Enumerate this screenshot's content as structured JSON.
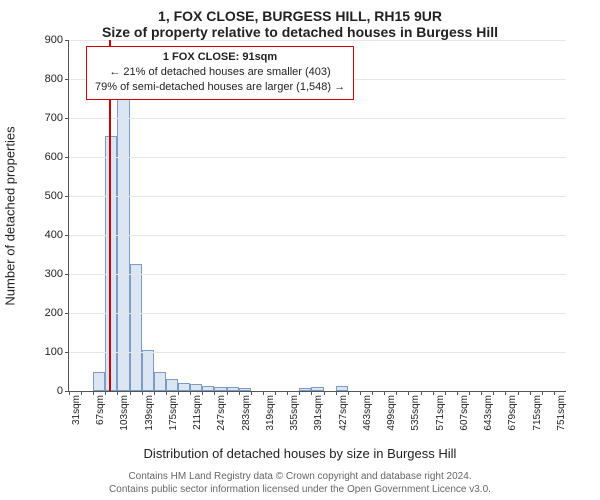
{
  "title": "1, FOX CLOSE, BURGESS HILL, RH15 9UR",
  "subtitle": "Size of property relative to detached houses in Burgess Hill",
  "ylabel": "Number of detached properties",
  "xlabel": "Distribution of detached houses by size in Burgess Hill",
  "chart": {
    "type": "histogram",
    "ylim": [
      0,
      900
    ],
    "ytick_step": 100,
    "x_start": 31,
    "x_bin_width": 18,
    "n_bins": 41,
    "xtick_step_bins": 2,
    "xtick_suffix": "sqm",
    "bar_fill": "#dce6f2",
    "bar_border": "#7a9cc6",
    "grid_color": "#e6e6e6",
    "axis_color": "#555555",
    "background": "#ffffff",
    "marker_value": 91,
    "marker_color": "#d00000",
    "bin_counts": [
      0,
      0,
      50,
      655,
      780,
      325,
      105,
      50,
      30,
      20,
      18,
      12,
      10,
      10,
      8,
      0,
      0,
      0,
      0,
      8,
      10,
      0,
      12,
      0,
      0,
      0,
      0,
      0,
      0,
      0,
      0,
      0,
      0,
      0,
      0,
      0,
      0,
      0,
      0,
      0,
      0
    ]
  },
  "annot": {
    "hd": "1 FOX CLOSE: 91sqm",
    "l1": "← 21% of detached houses are smaller (403)",
    "l2": "79% of semi-detached houses are larger (1,548) →"
  },
  "footer1": "Contains HM Land Registry data © Crown copyright and database right 2024.",
  "footer2": "Contains public sector information licensed under the Open Government Licence v3.0."
}
